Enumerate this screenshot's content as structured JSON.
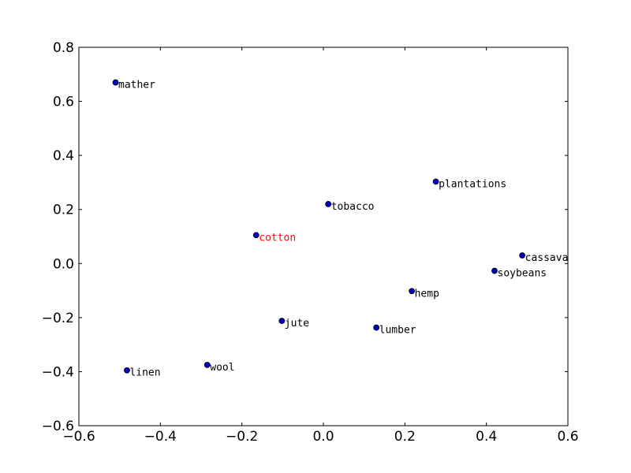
{
  "chart_data": {
    "type": "scatter",
    "title": "",
    "xlabel": "",
    "ylabel": "",
    "xlim": [
      -0.6,
      0.6
    ],
    "ylim": [
      -0.6,
      0.8
    ],
    "x_ticks": [
      -0.6,
      -0.4,
      -0.2,
      0.0,
      0.2,
      0.4,
      0.6
    ],
    "y_ticks": [
      -0.6,
      -0.4,
      -0.2,
      0.0,
      0.2,
      0.4,
      0.6,
      0.8
    ],
    "x_tick_labels": [
      "−0.6",
      "−0.4",
      "−0.2",
      "0.0",
      "0.2",
      "0.4",
      "0.6"
    ],
    "y_tick_labels": [
      "−0.6",
      "−0.4",
      "−0.2",
      "0.0",
      "0.2",
      "0.4",
      "0.6",
      "0.8"
    ],
    "grid": false,
    "marker_color": "#0000bf",
    "points": [
      {
        "label": "mather",
        "x": -0.51,
        "y": 0.67,
        "color": "#000000"
      },
      {
        "label": "plantations",
        "x": 0.276,
        "y": 0.303,
        "color": "#000000"
      },
      {
        "label": "tobacco",
        "x": 0.012,
        "y": 0.22,
        "color": "#000000"
      },
      {
        "label": "cotton",
        "x": -0.165,
        "y": 0.105,
        "color": "#ff0000"
      },
      {
        "label": "cassava",
        "x": 0.488,
        "y": 0.03,
        "color": "#000000"
      },
      {
        "label": "soybeans",
        "x": 0.42,
        "y": -0.027,
        "color": "#000000"
      },
      {
        "label": "hemp",
        "x": 0.217,
        "y": -0.102,
        "color": "#000000"
      },
      {
        "label": "jute",
        "x": -0.102,
        "y": -0.212,
        "color": "#000000"
      },
      {
        "label": "lumber",
        "x": 0.13,
        "y": -0.237,
        "color": "#000000"
      },
      {
        "label": "wool",
        "x": -0.285,
        "y": -0.375,
        "color": "#000000"
      },
      {
        "label": "linen",
        "x": -0.482,
        "y": -0.395,
        "color": "#000000"
      }
    ]
  }
}
